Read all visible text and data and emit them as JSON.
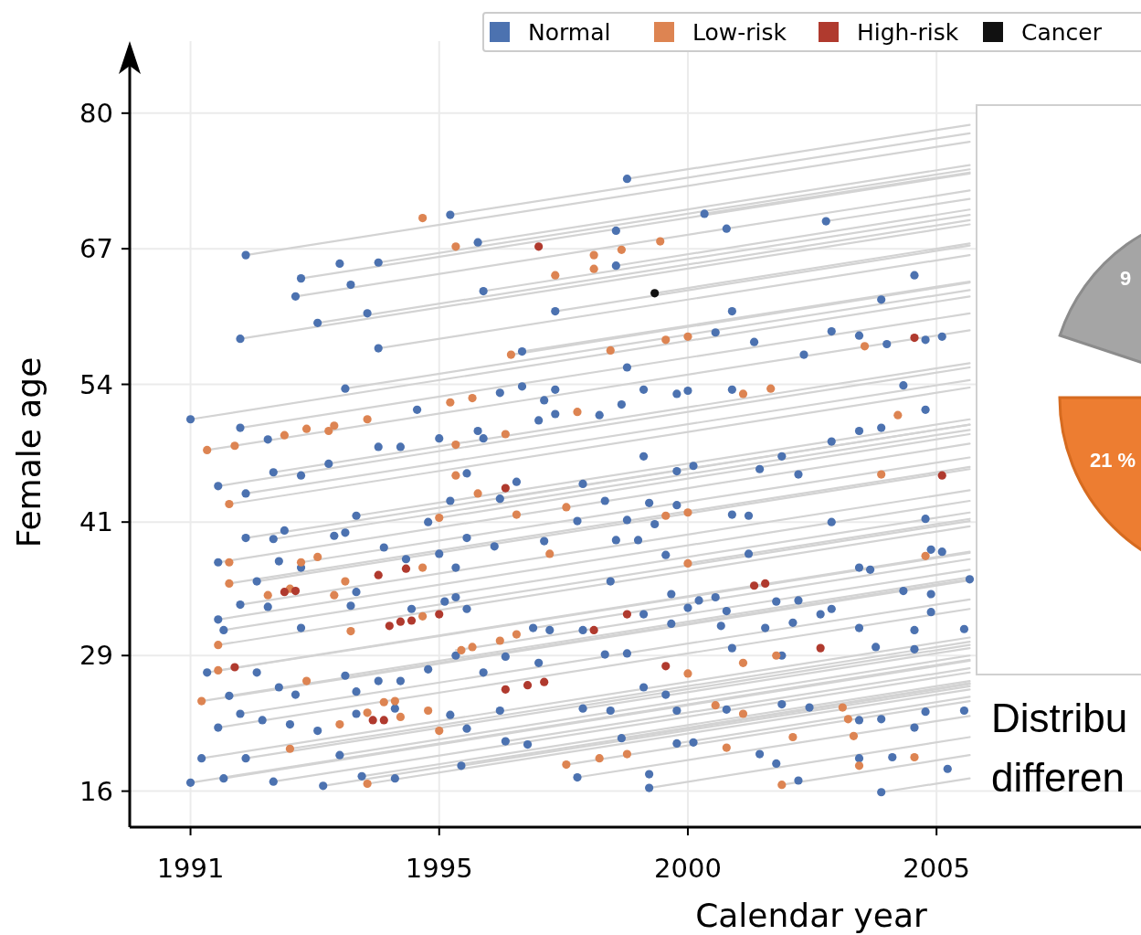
{
  "chart_data": [
    {
      "type": "scatter",
      "xlabel": "Calendar year",
      "ylabel": "Female age",
      "xlim": [
        1989.9,
        2008.2
      ],
      "ylim": [
        12.6,
        86.8
      ],
      "xticks": [
        {
          "value": 1991,
          "label": "1991"
        },
        {
          "value": 1995.5,
          "label": "1995"
        },
        {
          "value": 2000,
          "label": "2000"
        },
        {
          "value": 2004.5,
          "label": "2005"
        }
      ],
      "yticks": [
        {
          "value": 16,
          "label": "16"
        },
        {
          "value": 28.8,
          "label": "29"
        },
        {
          "value": 41.4,
          "label": "41"
        },
        {
          "value": 54.4,
          "label": "54"
        },
        {
          "value": 67.2,
          "label": "67"
        },
        {
          "value": 80,
          "label": "80"
        }
      ],
      "grid": true,
      "legend": "top right",
      "marker": "circle",
      "series": [
        {
          "type": "line",
          "color": "#d3d3d3",
          "marker": "none",
          "x": [
            1991.0,
            2005.1
          ],
          "values": [
            51.1,
            62.7
          ]
        },
        {
          "type": "line",
          "color": "#d3d3d3",
          "marker": "none",
          "x": [
            1992.0,
            2005.1
          ],
          "values": [
            66.6,
            77.3
          ]
        },
        {
          "type": "line",
          "color": "#d3d3d3",
          "marker": "none",
          "x": [
            1993.0,
            2005.1
          ],
          "values": [
            64.4,
            74.3
          ]
        },
        {
          "type": "line",
          "color": "#d3d3d3",
          "marker": "none",
          "x": [
            1992.9,
            2005.1
          ],
          "values": [
            62.7,
            72.7
          ]
        },
        {
          "type": "line",
          "color": "#d3d3d3",
          "marker": "none",
          "x": [
            1993.3,
            2005.1
          ],
          "values": [
            60.2,
            69.9
          ]
        },
        {
          "type": "line",
          "color": "#d3d3d3",
          "marker": "none",
          "x": [
            1991.9,
            2005.1
          ],
          "values": [
            58.7,
            69.5
          ]
        },
        {
          "type": "line",
          "color": "#d3d3d3",
          "marker": "none",
          "x": [
            1994.4,
            2005.1
          ],
          "values": [
            57.8,
            66.6
          ]
        },
        {
          "type": "line",
          "color": "#d3d3d3",
          "marker": "none",
          "x": [
            1993.8,
            2005.1
          ],
          "values": [
            54.0,
            63.3
          ]
        },
        {
          "type": "line",
          "color": "#d3d3d3",
          "marker": "none",
          "x": [
            1991.3,
            2005.1
          ],
          "values": [
            48.2,
            59.5
          ]
        },
        {
          "type": "line",
          "color": "#d3d3d3",
          "marker": "none",
          "x": [
            1991.9,
            2005.1
          ],
          "values": [
            50.3,
            61.1
          ]
        },
        {
          "type": "line",
          "color": "#d3d3d3",
          "marker": "none",
          "x": [
            1991.5,
            2005.1
          ],
          "values": [
            44.8,
            56.0
          ]
        },
        {
          "type": "line",
          "color": "#d3d3d3",
          "marker": "none",
          "x": [
            1992.0,
            2005.1
          ],
          "values": [
            44.1,
            54.8
          ]
        },
        {
          "type": "line",
          "color": "#d3d3d3",
          "marker": "none",
          "x": [
            1991.7,
            2005.1
          ],
          "values": [
            43.1,
            54.1
          ]
        },
        {
          "type": "line",
          "color": "#d3d3d3",
          "marker": "none",
          "x": [
            1992.5,
            2005.1
          ],
          "values": [
            46.1,
            56.4
          ]
        },
        {
          "type": "line",
          "color": "#d3d3d3",
          "marker": "none",
          "x": [
            1994.4,
            2005.1
          ],
          "values": [
            65.9,
            74.7
          ]
        },
        {
          "type": "line",
          "color": "#d3d3d3",
          "marker": "none",
          "x": [
            1995.7,
            2005.1
          ],
          "values": [
            70.4,
            78.1
          ]
        },
        {
          "type": "line",
          "color": "#d3d3d3",
          "marker": "none",
          "x": [
            1996.2,
            2005.1
          ],
          "values": [
            67.8,
            75.1
          ]
        },
        {
          "type": "line",
          "color": "#d3d3d3",
          "marker": "none",
          "x": [
            1998.9,
            2005.1
          ],
          "values": [
            73.8,
            78.9
          ]
        },
        {
          "type": "line",
          "color": "#d3d3d3",
          "marker": "none",
          "x": [
            1996.3,
            2005.1
          ],
          "values": [
            63.2,
            70.4
          ]
        },
        {
          "type": "line",
          "color": "#d3d3d3",
          "marker": "none",
          "x": [
            1991.5,
            2005.1
          ],
          "values": [
            37.6,
            48.8
          ]
        },
        {
          "type": "line",
          "color": "#d3d3d3",
          "marker": "none",
          "x": [
            1991.7,
            2005.1
          ],
          "values": [
            35.6,
            46.6
          ]
        },
        {
          "type": "line",
          "color": "#d3d3d3",
          "marker": "none",
          "x": [
            1991.9,
            2005.1
          ],
          "values": [
            33.6,
            44.4
          ]
        },
        {
          "type": "line",
          "color": "#d3d3d3",
          "marker": "none",
          "x": [
            1991.5,
            2005.1
          ],
          "values": [
            32.2,
            43.4
          ]
        },
        {
          "type": "line",
          "color": "#d3d3d3",
          "marker": "none",
          "x": [
            1991.6,
            2005.1
          ],
          "values": [
            31.2,
            42.3
          ]
        },
        {
          "type": "line",
          "color": "#d3d3d3",
          "marker": "none",
          "x": [
            1991.5,
            2005.1
          ],
          "values": [
            29.8,
            41.0
          ]
        },
        {
          "type": "line",
          "color": "#d3d3d3",
          "marker": "none",
          "x": [
            1991.5,
            2005.1
          ],
          "values": [
            27.4,
            38.6
          ]
        },
        {
          "type": "line",
          "color": "#d3d3d3",
          "marker": "none",
          "x": [
            1991.3,
            2005.1
          ],
          "values": [
            27.2,
            38.5
          ]
        },
        {
          "type": "line",
          "color": "#d3d3d3",
          "marker": "none",
          "x": [
            1991.2,
            2005.1
          ],
          "values": [
            24.5,
            35.9
          ]
        },
        {
          "type": "line",
          "color": "#d3d3d3",
          "marker": "none",
          "x": [
            1991.7,
            2005.1
          ],
          "values": [
            25.0,
            36.0
          ]
        },
        {
          "type": "line",
          "color": "#d3d3d3",
          "marker": "none",
          "x": [
            1991.5,
            2005.1
          ],
          "values": [
            22.0,
            33.2
          ]
        },
        {
          "type": "line",
          "color": "#d3d3d3",
          "marker": "none",
          "x": [
            1991.9,
            2005.1
          ],
          "values": [
            23.3,
            34.1
          ]
        },
        {
          "type": "line",
          "color": "#d3d3d3",
          "marker": "none",
          "x": [
            1991.2,
            2005.1
          ],
          "values": [
            19.1,
            30.5
          ]
        },
        {
          "type": "line",
          "color": "#d3d3d3",
          "marker": "none",
          "x": [
            1991.0,
            2005.1
          ],
          "values": [
            16.8,
            28.4
          ]
        },
        {
          "type": "line",
          "color": "#d3d3d3",
          "marker": "none",
          "x": [
            1991.6,
            2005.1
          ],
          "values": [
            17.2,
            28.3
          ]
        },
        {
          "type": "line",
          "color": "#d3d3d3",
          "marker": "none",
          "x": [
            1992.0,
            2005.1
          ],
          "values": [
            19.1,
            29.8
          ]
        },
        {
          "type": "line",
          "color": "#d3d3d3",
          "marker": "none",
          "x": [
            1992.5,
            2005.1
          ],
          "values": [
            16.9,
            27.2
          ]
        },
        {
          "type": "line",
          "color": "#d3d3d3",
          "marker": "none",
          "x": [
            1993.4,
            2005.1
          ],
          "values": [
            16.5,
            26.1
          ]
        },
        {
          "type": "line",
          "color": "#d3d3d3",
          "marker": "none",
          "x": [
            1994.1,
            2005.1
          ],
          "values": [
            17.4,
            26.4
          ]
        },
        {
          "type": "line",
          "color": "#d3d3d3",
          "marker": "none",
          "x": [
            1993.7,
            2005.1
          ],
          "values": [
            19.4,
            28.8
          ]
        },
        {
          "type": "line",
          "color": "#d3d3d3",
          "marker": "none",
          "x": [
            1995.9,
            2005.1
          ],
          "values": [
            18.4,
            25.9
          ]
        },
        {
          "type": "line",
          "color": "#d3d3d3",
          "marker": "none",
          "x": [
            1997.8,
            2005.1
          ],
          "values": [
            18.5,
            24.5
          ]
        },
        {
          "type": "line",
          "color": "#d3d3d3",
          "marker": "none",
          "x": [
            1998.0,
            2005.1
          ],
          "values": [
            17.3,
            23.1
          ]
        },
        {
          "type": "line",
          "color": "#d3d3d3",
          "marker": "none",
          "x": [
            1999.3,
            2005.1
          ],
          "values": [
            16.3,
            21.1
          ]
        },
        {
          "type": "line",
          "color": "#d3d3d3",
          "marker": "none",
          "x": [
            2001.7,
            2005.1
          ],
          "values": [
            16.6,
            19.4
          ]
        },
        {
          "type": "line",
          "color": "#d3d3d3",
          "marker": "none",
          "x": [
            2003.5,
            2005.1
          ],
          "values": [
            15.9,
            17.2
          ]
        },
        {
          "type": "line",
          "color": "#d3d3d3",
          "marker": "none",
          "x": [
            1994.2,
            2005.1
          ],
          "values": [
            16.7,
            25.6
          ]
        },
        {
          "type": "line",
          "color": "#d3d3d3",
          "marker": "none",
          "x": [
            1992.2,
            2005.1
          ],
          "values": [
            35.8,
            46.4
          ]
        },
        {
          "type": "line",
          "color": "#d3d3d3",
          "marker": "none",
          "x": [
            1993.0,
            2005.1
          ],
          "values": [
            37.6,
            47.5
          ]
        },
        {
          "type": "line",
          "color": "#d3d3d3",
          "marker": "none",
          "x": [
            1992.5,
            2005.1
          ],
          "values": [
            39.8,
            50.1
          ]
        },
        {
          "type": "line",
          "color": "#d3d3d3",
          "marker": "none",
          "x": [
            1992.0,
            2005.1
          ],
          "values": [
            39.9,
            50.6
          ]
        },
        {
          "type": "line",
          "color": "#d3d3d3",
          "marker": "none",
          "x": [
            1994.0,
            2005.1
          ],
          "values": [
            42.0,
            51.1
          ]
        },
        {
          "type": "line",
          "color": "#d3d3d3",
          "marker": "none",
          "x": [
            1995.5,
            2005.1
          ],
          "values": [
            41.8,
            49.7
          ]
        },
        {
          "type": "line",
          "color": "#d3d3d3",
          "marker": "none",
          "x": [
            1996.6,
            2005.1
          ],
          "values": [
            43.6,
            50.6
          ]
        },
        {
          "type": "line",
          "color": "#d3d3d3",
          "marker": "none",
          "x": [
            1998.7,
            2005.1
          ],
          "values": [
            65.6,
            70.9
          ]
        },
        {
          "type": "line",
          "color": "#d3d3d3",
          "marker": "none",
          "x": [
            1997.6,
            2005.1
          ],
          "values": [
            61.3,
            67.5
          ]
        },
        {
          "type": "line",
          "color": "#d3d3d3",
          "marker": "none",
          "x": [
            1999.4,
            2005.1
          ],
          "values": [
            63.0,
            67.7
          ]
        },
        {
          "type": "line",
          "color": "#d3d3d3",
          "marker": "none",
          "x": [
            2000.3,
            2005.1
          ],
          "values": [
            70.5,
            74.4
          ]
        },
        {
          "type": "line",
          "color": "#d3d3d3",
          "marker": "none",
          "x": [
            1996.8,
            2005.1
          ],
          "values": [
            57.2,
            64.0
          ]
        },
        {
          "type": "line",
          "color": "#d3d3d3",
          "marker": "none",
          "x": [
            1997.0,
            2005.1
          ],
          "values": [
            57.5,
            64.1
          ]
        },
        {
          "type": "line",
          "color": "#d3d3d3",
          "marker": "none",
          "x": [
            1995.0,
            2005.1
          ],
          "values": [
            33.2,
            41.5
          ]
        },
        {
          "type": "line",
          "color": "#d3d3d3",
          "marker": "none",
          "x": [
            1995.8,
            2005.1
          ],
          "values": [
            29.3,
            36.9
          ]
        },
        {
          "type": "line",
          "color": "#d3d3d3",
          "marker": "none",
          "x": [
            1993.8,
            2005.1
          ],
          "values": [
            26.9,
            36.2
          ]
        },
        {
          "type": "line",
          "color": "#d3d3d3",
          "marker": "none",
          "x": [
            1992.8,
            2005.1
          ],
          "values": [
            20.0,
            30.1
          ]
        },
        {
          "type": "line",
          "color": "#d3d3d3",
          "marker": "none",
          "x": [
            1996.7,
            2005.1
          ],
          "values": [
            20.7,
            27.6
          ]
        },
        {
          "type": "line",
          "color": "#d3d3d3",
          "marker": "none",
          "x": [
            1998.8,
            2005.1
          ],
          "values": [
            21.0,
            26.2
          ]
        },
        {
          "type": "line",
          "color": "#d3d3d3",
          "marker": "none",
          "x": [
            1999.8,
            2005.1
          ],
          "values": [
            20.5,
            24.9
          ]
        },
        {
          "type": "line",
          "color": "#d3d3d3",
          "marker": "none",
          "x": [
            1998.1,
            2005.1
          ],
          "values": [
            23.8,
            29.5
          ]
        },
        {
          "type": "line",
          "color": "#d3d3d3",
          "marker": "none",
          "x": [
            1997.2,
            2005.1
          ],
          "values": [
            31.4,
            37.9
          ]
        },
        {
          "type": "line",
          "color": "#d3d3d3",
          "marker": "none",
          "x": [
            2000.0,
            2005.1
          ],
          "values": [
            37.5,
            41.7
          ]
        },
        {
          "type": "line",
          "color": "#d3d3d3",
          "marker": "none",
          "x": [
            2002.5,
            2005.1
          ],
          "values": [
            69.8,
            71.9
          ]
        },
        {
          "name": "Normal",
          "color": "#4c72b0",
          "x": [
            1991.0,
            1998.9,
            1995.7,
            1996.2,
            2000.3,
            2000.7,
            2002.5,
            1992.0,
            1993.0,
            1992.9,
            1993.7,
            1993.9,
            1994.4,
            1993.3,
            1994.2,
            1996.3,
            1998.7,
            1998.7,
            1991.9,
            1994.4,
            1997.6,
            2000.8,
            2003.5,
            2004.1,
            1993.8,
            1997.0,
            1991.9,
            1992.4,
            1992.5,
            1993.0,
            1993.5,
            1991.5,
            1992.0,
            1994.4,
            1994.8,
            1995.1,
            1995.5,
            1996.2,
            1996.3,
            1996.6,
            1997.0,
            1997.6,
            1997.4,
            1997.3,
            1997.6,
            1998.4,
            1998.8,
            1998.9,
            1999.2,
            1999.8,
            2000.0,
            2000.5,
            2001.2,
            2000.8,
            2002.1,
            2002.6,
            2003.1,
            2003.6,
            2003.9,
            2004.3,
            2004.6,
            2004.3,
            2003.5,
            2003.1,
            2002.6,
            2001.7,
            2001.3,
            2002.0,
            1999.8,
            2000.1,
            1999.2,
            1998.1,
            1996.9,
            1996.0,
            1995.7,
            1996.6,
            1998.5,
            1999.3,
            1999.8,
            2000.8,
            2001.1,
            2002.6,
            2004.3,
            1999.4,
            1998.9,
            1998.0,
            1992.0,
            1992.5,
            1992.7,
            1993.6,
            1994.0,
            1993.8,
            1995.3,
            1994.5,
            1996.0,
            1995.5,
            1996.5,
            1997.4,
            1998.7,
            1999.1,
            1999.6,
            2001.1,
            1991.5,
            1992.2,
            1991.9,
            1991.5,
            1991.6,
            1992.4,
            1993.0,
            1992.6,
            1993.0,
            1994.0,
            1993.9,
            1994.9,
            1995.0,
            1995.8,
            1995.6,
            1996.0,
            1995.8,
            1998.6,
            1999.7,
            2000.2,
            2000.5,
            2000.7,
            2001.6,
            2002.0,
            2002.6,
            2004.4,
            2004.6,
            2003.1,
            2003.3,
            2003.9,
            2004.4,
            2005.1,
            1991.3,
            1991.7,
            1992.2,
            1992.6,
            1992.9,
            1993.8,
            1994.0,
            1994.4,
            1994.8,
            1995.3,
            1995.8,
            1996.3,
            1996.7,
            1997.2,
            1997.3,
            1997.5,
            1998.1,
            1998.5,
            1998.9,
            1999.2,
            1999.7,
            2000.0,
            2000.6,
            2000.8,
            2001.4,
            2001.7,
            2001.9,
            2002.4,
            2003.1,
            2003.4,
            2004.1,
            2004.4,
            2004.1,
            2005.0,
            1991.5,
            1991.9,
            1992.3,
            1992.8,
            1993.3,
            1993.7,
            1994.0,
            1994.7,
            1995.7,
            1996.0,
            1996.6,
            1997.1,
            1998.1,
            1998.6,
            1999.2,
            1999.6,
            1999.8,
            2000.7,
            2001.7,
            2002.2,
            2003.1,
            2003.5,
            2004.1,
            2004.3,
            2005.0,
            1991.2,
            1991.6,
            1991.0,
            1992.0,
            1992.5,
            1993.4,
            1994.1,
            1994.7,
            1995.9,
            1996.7,
            1998.0,
            1998.8,
            1999.3,
            1999.3,
            1999.8,
            2000.1,
            2001.3,
            2001.6,
            2002.0,
            2003.1,
            2003.5,
            2003.7,
            2004.7
          ],
          "values": [
            51.1,
            73.8,
            70.4,
            67.8,
            70.5,
            69.1,
            69.8,
            66.6,
            64.4,
            62.7,
            65.8,
            63.8,
            65.9,
            60.2,
            61.1,
            63.2,
            68.9,
            65.6,
            58.7,
            57.8,
            61.3,
            61.3,
            62.4,
            64.7,
            54.0,
            57.5,
            50.3,
            49.2,
            46.1,
            45.8,
            46.9,
            44.8,
            44.1,
            48.5,
            48.5,
            52.0,
            49.3,
            50.0,
            49.3,
            53.6,
            54.2,
            53.9,
            52.9,
            51.0,
            51.6,
            51.5,
            52.5,
            56.0,
            53.9,
            53.5,
            53.8,
            59.3,
            58.4,
            53.9,
            57.2,
            59.4,
            59.0,
            58.2,
            54.3,
            58.6,
            58.9,
            52.0,
            50.3,
            50.0,
            49.0,
            47.6,
            46.4,
            45.9,
            46.2,
            46.7,
            47.6,
            45.0,
            45.2,
            46.0,
            43.4,
            43.6,
            43.4,
            43.2,
            43.0,
            42.1,
            42.0,
            41.4,
            41.7,
            41.2,
            41.6,
            41.5,
            39.9,
            39.8,
            40.6,
            40.1,
            42.0,
            40.4,
            41.4,
            39.0,
            39.9,
            38.4,
            39.1,
            39.6,
            39.7,
            39.7,
            38.3,
            38.4,
            37.6,
            35.8,
            33.6,
            32.2,
            31.2,
            33.4,
            31.4,
            37.7,
            37.1,
            34.8,
            33.5,
            37.9,
            33.2,
            37.1,
            33.9,
            33.2,
            34.3,
            35.8,
            34.6,
            34.0,
            34.3,
            33.0,
            33.9,
            34.0,
            33.2,
            38.8,
            38.6,
            37.1,
            36.9,
            34.9,
            34.6,
            36.0,
            27.2,
            25.0,
            27.2,
            25.8,
            25.1,
            26.9,
            25.4,
            26.4,
            26.4,
            27.5,
            28.8,
            27.2,
            28.7,
            31.4,
            28.1,
            31.2,
            31.2,
            28.9,
            29.0,
            32.7,
            31.8,
            33.3,
            31.6,
            29.5,
            31.4,
            28.8,
            31.9,
            32.7,
            31.4,
            29.6,
            31.2,
            32.9,
            29.4,
            31.3,
            22.0,
            23.3,
            22.7,
            22.3,
            21.7,
            19.4,
            23.3,
            23.8,
            23.2,
            21.9,
            23.6,
            20.4,
            23.8,
            23.6,
            25.8,
            25.1,
            23.6,
            23.7,
            24.2,
            23.9,
            22.7,
            22.8,
            22.0,
            23.5,
            23.6,
            19.1,
            17.2,
            16.8,
            19.1,
            16.9,
            16.5,
            17.4,
            17.2,
            18.4,
            20.7,
            17.3,
            21.0,
            17.6,
            16.3,
            20.5,
            20.6,
            19.5,
            18.6,
            17.0,
            19.1,
            15.9,
            19.2,
            18.1
          ]
        },
        {
          "name": "Low-risk",
          "color": "#dd8452",
          "x": [
            1995.2,
            1995.8,
            1997.6,
            1998.3,
            1998.3,
            1998.8,
            1999.5,
            1996.8,
            1998.6,
            1999.6,
            2000.0,
            2003.2,
            1991.3,
            1991.8,
            1992.7,
            1993.1,
            1993.5,
            1993.6,
            1994.2,
            1995.7,
            1996.1,
            1995.8,
            1996.7,
            1995.8,
            1996.2,
            1996.9,
            1997.8,
            1998.0,
            1999.6,
            2000.0,
            2000.0,
            2001.0,
            2001.5,
            2003.5,
            2003.8,
            1991.7,
            1991.7,
            1991.7,
            1992.4,
            1992.8,
            1993.0,
            1993.3,
            1993.6,
            1993.8,
            1995.2,
            1995.5,
            1997.5,
            1991.5,
            1991.5,
            1993.9,
            1995.2,
            1993.1,
            1995.9,
            1996.1,
            1996.6,
            1996.9,
            1991.2,
            1993.7,
            1994.2,
            1994.5,
            1994.7,
            1994.8,
            1995.3,
            1995.5,
            1992.8,
            1994.2,
            1997.8,
            1998.4,
            1998.9,
            2000.5,
            2000.7,
            2001.0,
            2001.6,
            2000.0,
            2001.0,
            2001.9,
            2001.7,
            2002.8,
            2002.9,
            2003.0,
            2003.1,
            2004.1,
            2004.3
          ],
          "values": [
            70.1,
            67.4,
            64.7,
            66.6,
            65.3,
            67.1,
            67.9,
            57.2,
            57.6,
            58.6,
            58.9,
            58.0,
            48.2,
            48.6,
            49.6,
            50.2,
            50.0,
            50.5,
            51.1,
            52.7,
            53.1,
            48.7,
            49.7,
            45.8,
            44.1,
            42.1,
            42.8,
            51.8,
            42.0,
            42.3,
            37.5,
            53.5,
            54.0,
            45.9,
            51.5,
            43.1,
            37.6,
            35.6,
            34.5,
            35.1,
            37.6,
            38.1,
            34.5,
            35.8,
            37.1,
            41.8,
            38.4,
            29.8,
            27.4,
            31.1,
            32.5,
            26.4,
            29.3,
            29.6,
            30.2,
            30.8,
            24.5,
            22.3,
            23.4,
            24.4,
            24.5,
            23.0,
            23.6,
            21.7,
            20.0,
            16.7,
            18.5,
            19.1,
            19.5,
            24.1,
            20.1,
            28.1,
            28.8,
            27.1,
            23.3,
            21.1,
            16.6,
            23.9,
            22.8,
            21.2,
            18.4,
            19.2,
            38.2
          ]
        },
        {
          "name": "High-risk",
          "color": "#b03a2e",
          "x": [
            1997.3,
            2004.1,
            2004.6,
            1996.7,
            1992.7,
            1992.9,
            1994.4,
            1994.9,
            1994.6,
            1994.8,
            1995.0,
            1995.5,
            1991.8,
            1998.3,
            1998.9,
            2001.2,
            2001.4,
            2002.4,
            1999.6,
            1996.7,
            1997.1,
            1997.4,
            1994.3,
            1994.5
          ],
          "values": [
            67.4,
            58.8,
            45.8,
            44.6,
            34.8,
            34.9,
            36.4,
            37.0,
            31.6,
            32.0,
            32.1,
            32.7,
            27.7,
            31.2,
            32.7,
            35.4,
            35.6,
            29.5,
            27.8,
            25.6,
            26.0,
            26.3,
            22.7,
            22.7
          ]
        },
        {
          "name": "Cancer",
          "color": "#111111",
          "x": [
            1999.4
          ],
          "values": [
            63.0
          ]
        }
      ]
    },
    {
      "type": "other",
      "annotations": [
        "9",
        "21 %",
        "Distribu",
        "differen"
      ]
    }
  ]
}
